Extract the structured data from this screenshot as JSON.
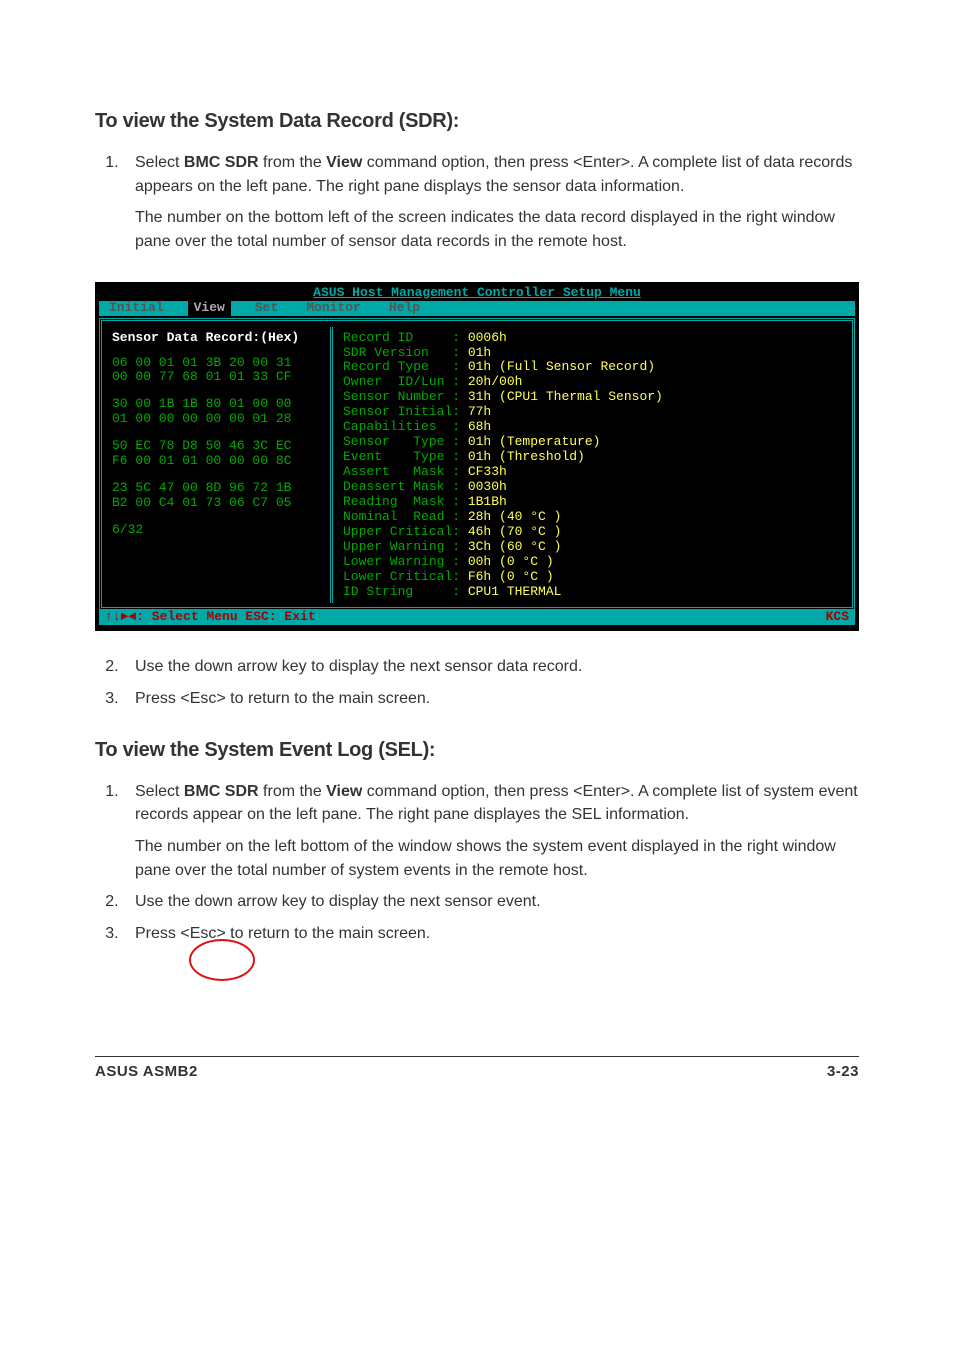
{
  "section1": {
    "title": "To view the System Data Record (SDR):",
    "step1_a": "Select ",
    "step1_b": "BMC SDR",
    "step1_c": " from the ",
    "step1_d": "View",
    "step1_e": " command option, then press <Enter>. A complete list of data records appears on the left pane. The right pane displays the sensor data information.",
    "step1_para2": "The number on the bottom left of the screen indicates the data record displayed in the right window pane over the total number of sensor data records in the remote host.",
    "step2": "Use the down arrow key to display the next sensor data record.",
    "step3": "Press <Esc> to return to the main screen."
  },
  "terminal": {
    "title": "ASUS Host Management Controller Setup Menu",
    "menu": {
      "initial": "Initial",
      "view": "View",
      "set": "Set",
      "monitor": "Monitor",
      "help": "Help"
    },
    "left": {
      "header": "Sensor Data Record:(Hex)",
      "block1": "06 00 01 01 3B 20 00 31\n00 00 77 68 01 01 33 CF",
      "block2": "30 00 1B 1B 80 01 00 00\n01 00 00 00 00 00 01 28",
      "block3": "50 EC 78 D8 50 46 3C EC\nF6 00 01 01 00 00 00 8C",
      "block4": "23 5C 47 00 8D 96 72 1B\nB2 00 C4 01 73 06 C7 05",
      "counter": "6/32"
    },
    "right": [
      {
        "k": "Record ID     : ",
        "v": "0006h"
      },
      {
        "k": "SDR Version   : ",
        "v": "01h"
      },
      {
        "k": "Record Type   : ",
        "v": "01h (Full Sensor Record)"
      },
      {
        "k": "Owner  ID/Lun : ",
        "v": "20h/00h"
      },
      {
        "k": "Sensor Number : ",
        "v": "31h (CPU1 Thermal Sensor)"
      },
      {
        "k": "Sensor Initial: ",
        "v": "77h"
      },
      {
        "k": "Capabilities  : ",
        "v": "68h"
      },
      {
        "k": "Sensor   Type : ",
        "v": "01h (Temperature)"
      },
      {
        "k": "Event    Type : ",
        "v": "01h (Threshold)"
      },
      {
        "k": "Assert   Mask : ",
        "v": "CF33h"
      },
      {
        "k": "Deassert Mask : ",
        "v": "0030h"
      },
      {
        "k": "Reading  Mask : ",
        "v": "1B1Bh"
      },
      {
        "k": "Nominal  Read : ",
        "v": "28h (40 °C )"
      },
      {
        "k": "Upper Critical: ",
        "v": "46h (70 °C )"
      },
      {
        "k": "Upper Warning : ",
        "v": "3Ch (60 °C )"
      },
      {
        "k": "Lower Warning : ",
        "v": "00h (0 °C )"
      },
      {
        "k": "Lower Critical: ",
        "v": "F6h (0 °C )"
      },
      {
        "k": "ID String     : ",
        "v": "CPU1 THERMAL"
      }
    ],
    "status_left": "↑↓►◄: Select Menu  ESC: Exit",
    "status_right": "KCS"
  },
  "section2": {
    "title": "To view the System Event Log (SEL):",
    "step1_a": "Select ",
    "step1_b": "BMC SDR",
    "step1_c": " from the ",
    "step1_d": "View",
    "step1_e": " command option, then press <Enter>. A complete list of system event records appear on the left pane. The right pane displayes the SEL information.",
    "step1_para2": "The number on the left bottom of the window shows the system event displayed in the right window pane over the total number of system events in the remote host.",
    "step2": "Use the down arrow key to display the next sensor event.",
    "step3": "Press <Esc> to return to the main screen."
  },
  "footer": {
    "left": "ASUS ASMB2",
    "right": "3-23"
  }
}
